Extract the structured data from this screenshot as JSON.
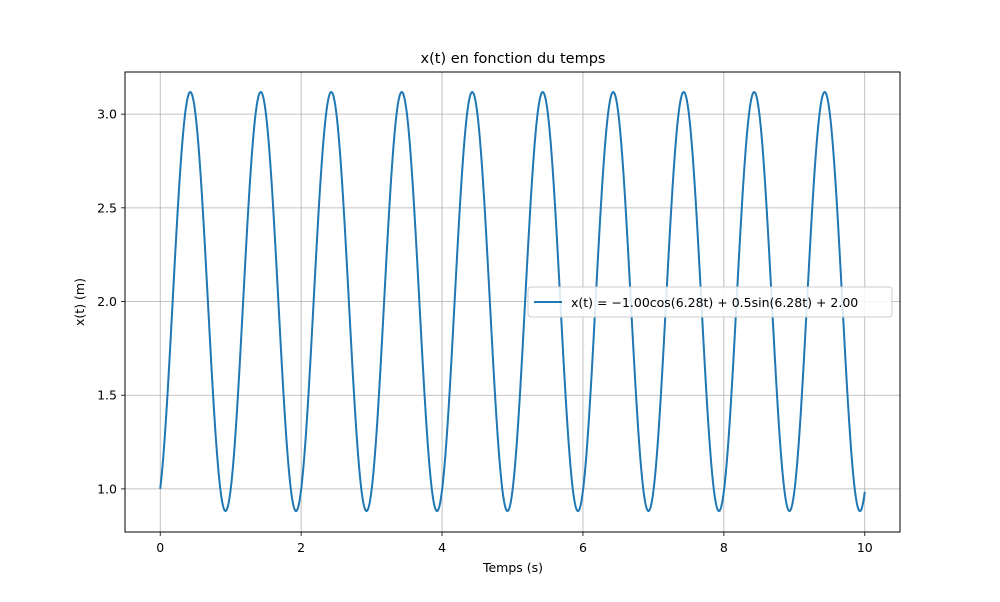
{
  "chart_data": {
    "type": "line",
    "title": "x(t) en fonction du temps",
    "xlabel": "Temps (s)",
    "ylabel": "x(t) (m)",
    "xlim": [
      -0.5,
      10.5
    ],
    "ylim": [
      0.77,
      3.225
    ],
    "xticks": [
      0,
      2,
      4,
      6,
      8,
      10
    ],
    "xtick_labels": [
      "0",
      "2",
      "4",
      "6",
      "8",
      "10"
    ],
    "yticks": [
      1.0,
      1.5,
      2.0,
      2.5,
      3.0
    ],
    "ytick_labels": [
      "1.0",
      "1.5",
      "2.0",
      "2.5",
      "3.0"
    ],
    "grid": true,
    "legend_position": "right",
    "series": [
      {
        "name": "x(t) = −1.00cos(6.28t) + 0.5sin(6.28t) + 2.00",
        "color": "#1f77b4",
        "function": {
          "cos_coef": -1.0,
          "sin_coef": 0.5,
          "omega": 6.28,
          "offset": 2.0,
          "t_range": [
            0,
            10
          ]
        },
        "x": [
          0,
          0.43,
          0.93,
          1.43,
          1.93,
          2.43,
          2.93,
          3.43,
          3.93,
          4.43,
          4.93,
          5.43,
          5.93,
          6.43,
          6.93,
          7.43,
          7.93,
          8.43,
          8.93,
          9.43,
          9.93,
          10
        ],
        "values": [
          1.0,
          3.118,
          0.882,
          3.118,
          0.882,
          3.118,
          0.882,
          3.118,
          0.882,
          3.118,
          0.882,
          3.118,
          0.882,
          3.118,
          0.882,
          3.118,
          0.882,
          3.118,
          0.882,
          3.118,
          0.882,
          0.99
        ]
      }
    ]
  }
}
